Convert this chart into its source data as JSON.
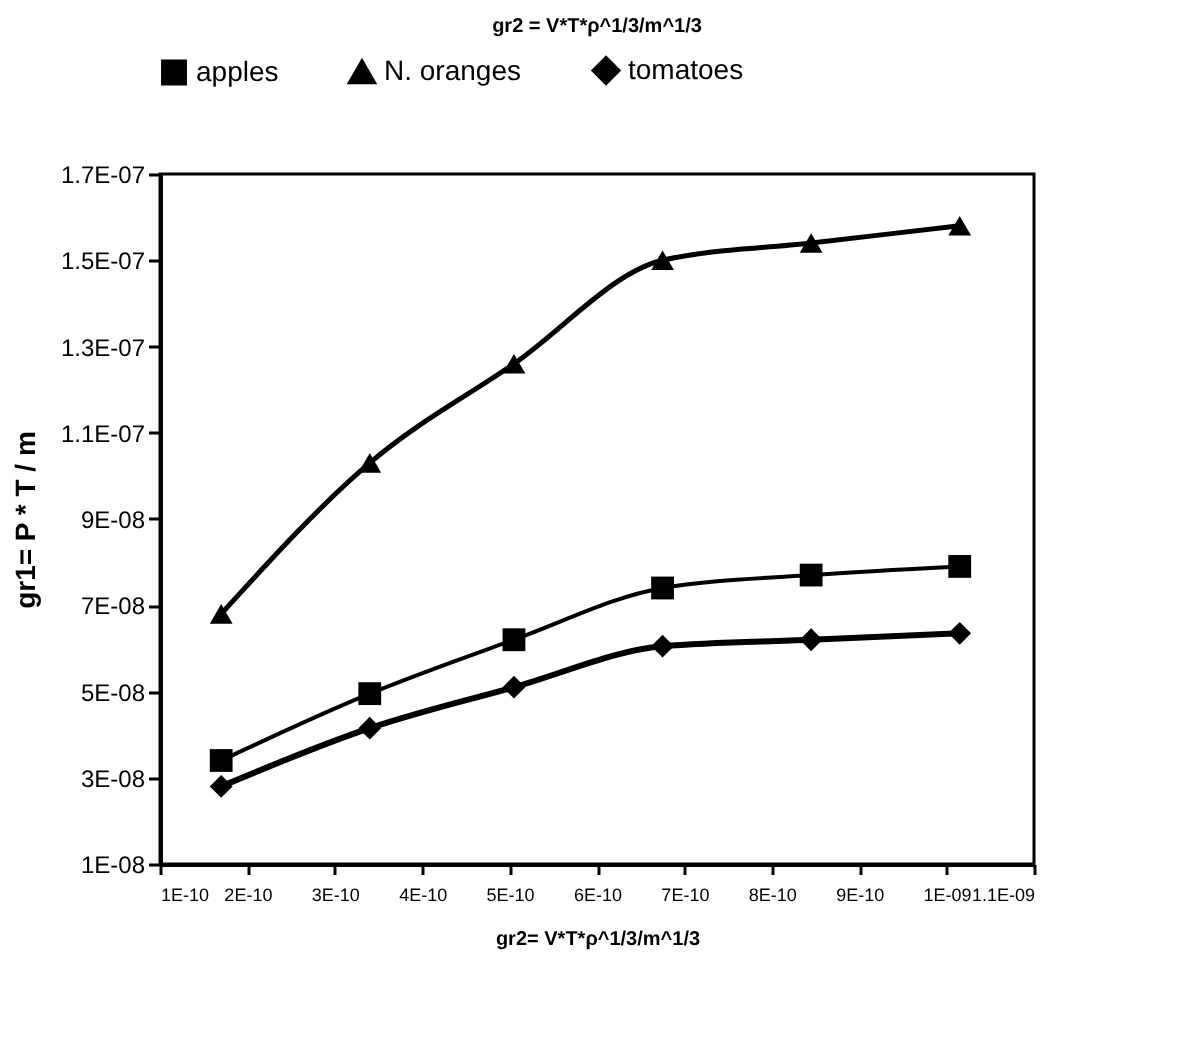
{
  "chart_data": {
    "type": "line",
    "title": "gr2 = V*T*ρ^1/3/m^1/3",
    "xlabel": "gr2= V*T*ρ^1/3/m^1/3",
    "ylabel": "gr1= P * T / m",
    "x": [
      1.7e-10,
      3.4e-10,
      5.05e-10,
      6.75e-10,
      8.45e-10,
      1.015e-09
    ],
    "series": [
      {
        "name": "apples",
        "color": "#000000",
        "marker": "square",
        "values": [
          3.4e-08,
          4.95e-08,
          6.2e-08,
          7.4e-08,
          7.7e-08,
          7.9e-08
        ]
      },
      {
        "name": "N. oranges",
        "color": "#000000",
        "marker": "triangle",
        "values": [
          6.8e-08,
          1.03e-07,
          1.26e-07,
          1.5e-07,
          1.54e-07,
          1.58e-07
        ]
      },
      {
        "name": "tomatoes",
        "color": "#000000",
        "marker": "diamond",
        "values": [
          2.8e-08,
          4.15e-08,
          5.1e-08,
          6.05e-08,
          6.2e-08,
          6.35e-08
        ]
      }
    ],
    "xlim": [
      1e-10,
      1.1e-09
    ],
    "xticks": [
      {
        "value": 1e-10,
        "label": "1E-10"
      },
      {
        "value": 2e-10,
        "label": "2E-10"
      },
      {
        "value": 3e-10,
        "label": "3E-10"
      },
      {
        "value": 4e-10,
        "label": "4E-10"
      },
      {
        "value": 5e-10,
        "label": "5E-10"
      },
      {
        "value": 6e-10,
        "label": "6E-10"
      },
      {
        "value": 7e-10,
        "label": "7E-10"
      },
      {
        "value": 8e-10,
        "label": "8E-10"
      },
      {
        "value": 9e-10,
        "label": "9E-10"
      },
      {
        "value": 1e-09,
        "label": "1E-09"
      },
      {
        "value": 1.1e-09,
        "label": "1.1E-09"
      }
    ],
    "ylim": [
      1e-08,
      1.7e-07
    ],
    "yticks": [
      {
        "value": 1e-08,
        "label": "1E-08"
      },
      {
        "value": 3e-08,
        "label": "3E-08"
      },
      {
        "value": 5e-08,
        "label": "5E-08"
      },
      {
        "value": 7e-08,
        "label": "7E-08"
      },
      {
        "value": 9e-08,
        "label": "9E-08"
      },
      {
        "value": 1.1e-07,
        "label": "1.1E-07"
      },
      {
        "value": 1.3e-07,
        "label": "1.3E-07"
      },
      {
        "value": 1.5e-07,
        "label": "1.5E-07"
      },
      {
        "value": 1.7e-07,
        "label": "1.7E-07"
      }
    ],
    "legend": "top",
    "grid": false,
    "line_style": "solid"
  }
}
